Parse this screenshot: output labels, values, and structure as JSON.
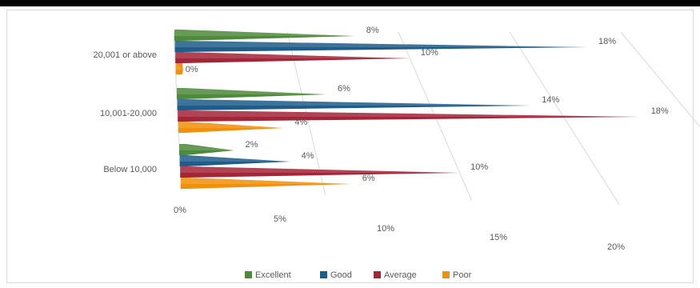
{
  "chart_data": {
    "type": "bar",
    "orientation": "horizontal",
    "style": "3d-pyramid",
    "categories": [
      "20,001 or above",
      "10,001-20,000",
      "Below 10,000"
    ],
    "series": [
      {
        "name": "Excellent",
        "color": "#4f8a3c",
        "values": [
          8,
          6,
          2
        ],
        "labels": [
          "8%",
          "6%",
          "2%"
        ]
      },
      {
        "name": "Good",
        "color": "#1f5c8a",
        "values": [
          18,
          14,
          4
        ],
        "labels": [
          "18%",
          "14%",
          "4%"
        ]
      },
      {
        "name": "Average",
        "color": "#a32538",
        "values": [
          10,
          18,
          10
        ],
        "labels": [
          "10%",
          "18%",
          "10%"
        ]
      },
      {
        "name": "Poor",
        "color": "#f0900c",
        "values": [
          0,
          4,
          6
        ],
        "labels": [
          "0%",
          "4%",
          "6%"
        ]
      }
    ],
    "xlim": [
      0,
      20
    ],
    "xticks": [
      0,
      5,
      10,
      15,
      20
    ],
    "xtick_labels": [
      "0%",
      "5%",
      "10%",
      "15%",
      "20%"
    ],
    "grid": true,
    "legend_position": "bottom",
    "title": "",
    "xlabel": "",
    "ylabel": ""
  }
}
